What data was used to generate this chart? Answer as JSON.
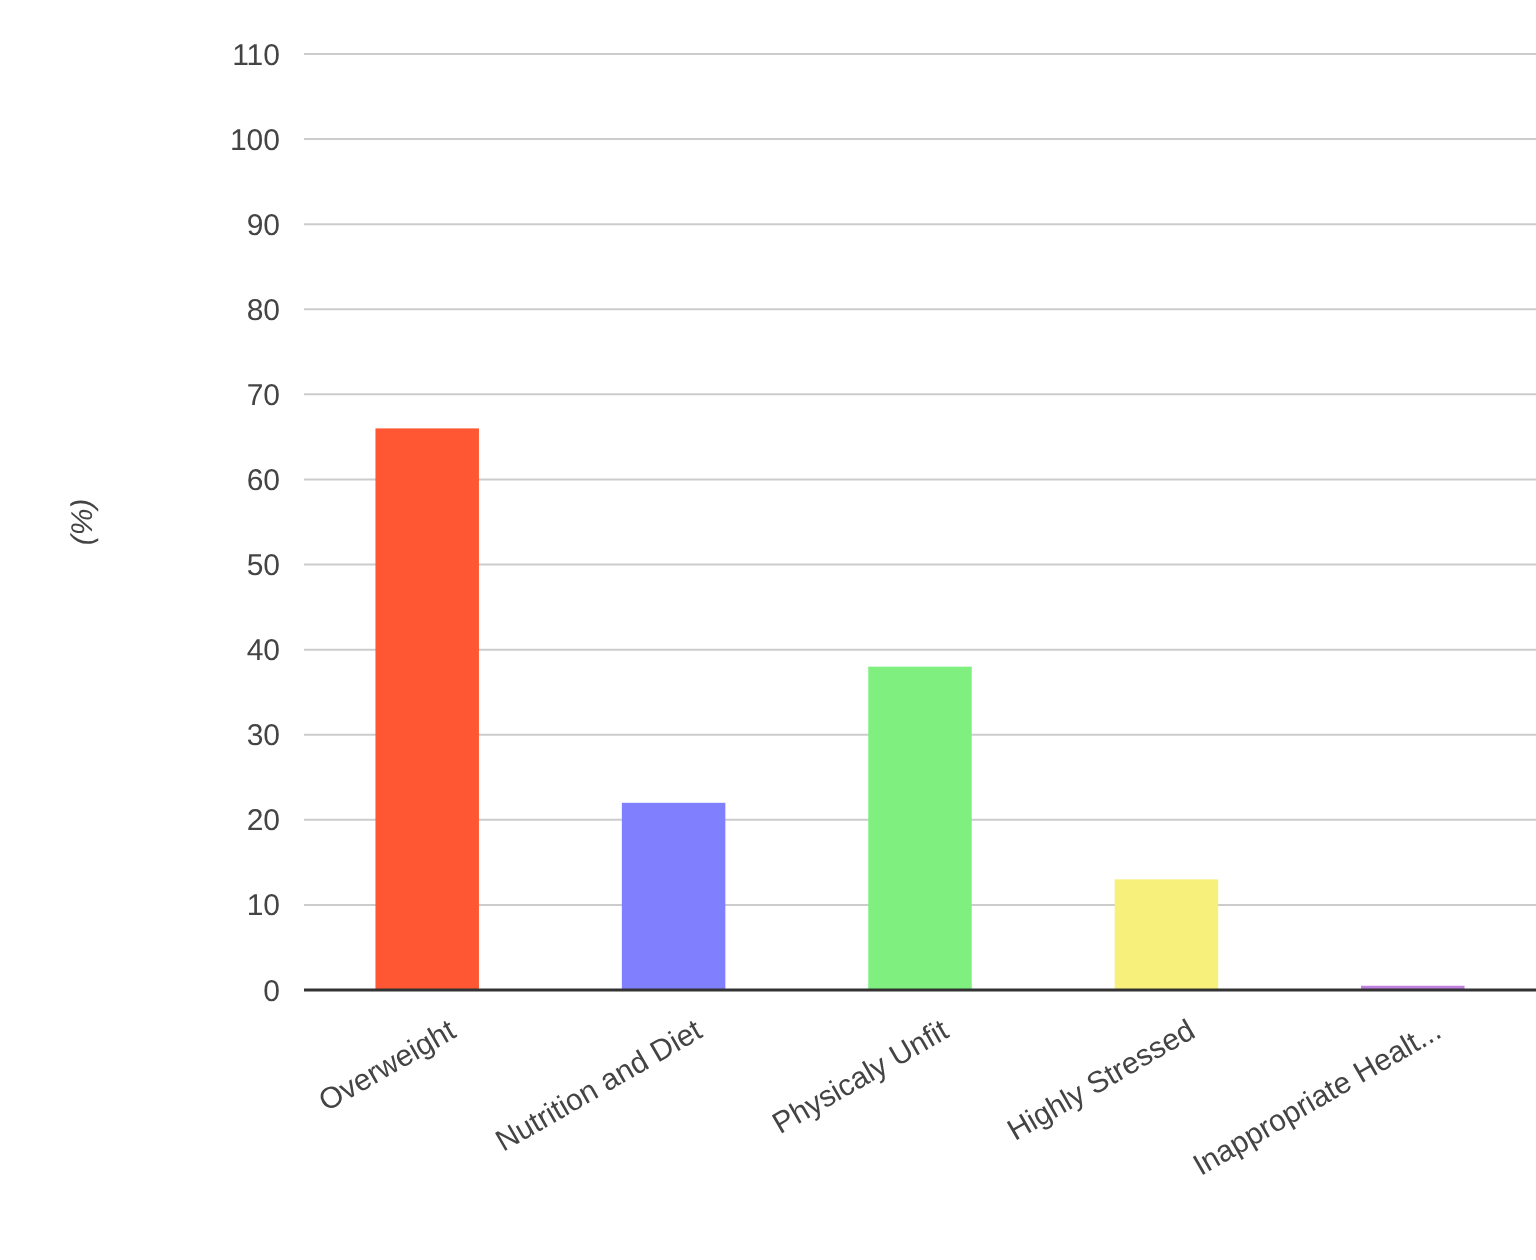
{
  "chart_data": {
    "type": "bar",
    "ylabel": "(%)",
    "categories": [
      "Overweight",
      "Nutrition and Diet",
      "Physicaly Unfit",
      "Highly Stressed",
      "Inappropriate Healt..."
    ],
    "values": [
      66,
      22,
      38,
      13,
      0.5
    ],
    "colors": [
      "#ff5733",
      "#8080ff",
      "#7ff07f",
      "#f7f07a",
      "#c080e0"
    ],
    "ylim": [
      0,
      110
    ],
    "yticks": [
      0,
      10,
      20,
      30,
      40,
      50,
      60,
      70,
      80,
      90,
      100,
      110
    ],
    "grid": "y"
  }
}
